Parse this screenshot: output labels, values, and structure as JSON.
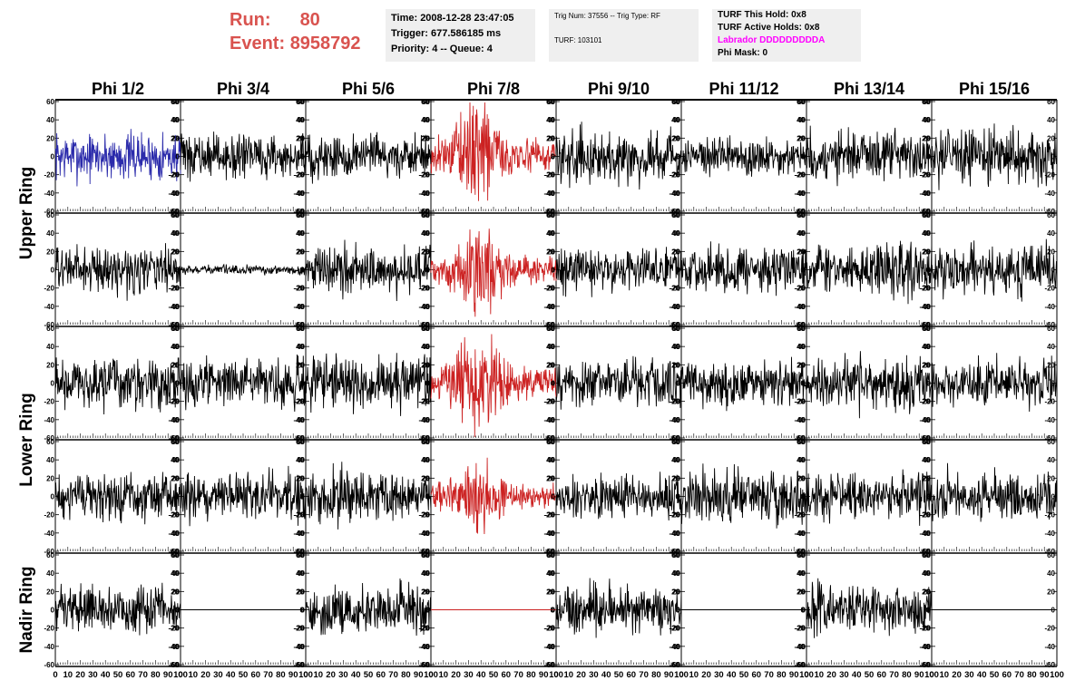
{
  "header": {
    "run_label": "Run:",
    "run_value": "80",
    "event_label": "Event:",
    "event_value": "8958792",
    "title_color": "#d9534f",
    "time": "Time: 2008-12-28 23:47:05",
    "trigger": "Trigger: 677.586185 ms",
    "priority": "Priority: 4 -- Queue: 4",
    "trig_num": "Trig Num: 37556 -- Trig Type: RF",
    "turf": "TURF: 103101",
    "turf_hold": "TURF This Hold: 0x8",
    "turf_active": "TURF Active Holds: 0x8",
    "labrador": "Labrador DDDDDDDDDA",
    "labrador_color": "#ff00ff",
    "phi_mask": "Phi Mask: 0"
  },
  "chart_data": {
    "type": "line",
    "columns": [
      "Phi 1/2",
      "Phi 3/4",
      "Phi 5/6",
      "Phi 7/8",
      "Phi 9/10",
      "Phi 11/12",
      "Phi 13/14",
      "Phi 15/16"
    ],
    "rows": [
      "Upper Ring",
      "",
      "Lower Ring",
      "",
      "Nadir Ring"
    ],
    "row_label_spans": [
      {
        "label": "Upper Ring",
        "rows": [
          0,
          1
        ]
      },
      {
        "label": "Lower Ring",
        "rows": [
          2,
          3
        ]
      },
      {
        "label": "Nadir Ring",
        "rows": [
          4
        ]
      }
    ],
    "xlim": [
      0,
      100
    ],
    "ylim": [
      -60,
      60
    ],
    "x_ticks": [
      0,
      10,
      20,
      30,
      40,
      50,
      60,
      70,
      80,
      90,
      100
    ],
    "x_tick_labels": [
      "0",
      "10",
      "20",
      "30",
      "40",
      "50",
      "60",
      "70",
      "80",
      "90",
      "100"
    ],
    "y_ticks": [
      -60,
      -40,
      -20,
      0,
      20,
      40,
      60
    ],
    "y_tick_labels": [
      "-60",
      "-40",
      "-20",
      "0",
      "20",
      "40",
      "60"
    ],
    "colors": {
      "normal": "#000000",
      "highlight": "#cc2222",
      "blue": "#2b2bab"
    },
    "panels": [
      [
        {
          "color": "blue",
          "amp": 16,
          "burst": false
        },
        {
          "color": "normal",
          "amp": 14,
          "burst": false
        },
        {
          "color": "normal",
          "amp": 15,
          "burst": false
        },
        {
          "color": "highlight",
          "amp": 30,
          "burst": true
        },
        {
          "color": "normal",
          "amp": 17,
          "burst": false
        },
        {
          "color": "normal",
          "amp": 13,
          "burst": false
        },
        {
          "color": "normal",
          "amp": 17,
          "burst": false
        },
        {
          "color": "normal",
          "amp": 18,
          "burst": false
        }
      ],
      [
        {
          "color": "normal",
          "amp": 15,
          "burst": false
        },
        {
          "color": "normal",
          "amp": 3,
          "burst": false
        },
        {
          "color": "normal",
          "amp": 16,
          "burst": false
        },
        {
          "color": "highlight",
          "amp": 25,
          "burst": true
        },
        {
          "color": "normal",
          "amp": 14,
          "burst": false
        },
        {
          "color": "normal",
          "amp": 15,
          "burst": false
        },
        {
          "color": "normal",
          "amp": 17,
          "burst": false
        },
        {
          "color": "normal",
          "amp": 16,
          "burst": false
        }
      ],
      [
        {
          "color": "normal",
          "amp": 17,
          "burst": false
        },
        {
          "color": "normal",
          "amp": 15,
          "burst": false
        },
        {
          "color": "normal",
          "amp": 17,
          "burst": false
        },
        {
          "color": "highlight",
          "amp": 30,
          "burst": true
        },
        {
          "color": "normal",
          "amp": 16,
          "burst": false
        },
        {
          "color": "normal",
          "amp": 15,
          "burst": false
        },
        {
          "color": "normal",
          "amp": 17,
          "burst": false
        },
        {
          "color": "normal",
          "amp": 15,
          "burst": false
        }
      ],
      [
        {
          "color": "normal",
          "amp": 15,
          "burst": false
        },
        {
          "color": "normal",
          "amp": 16,
          "burst": false
        },
        {
          "color": "normal",
          "amp": 17,
          "burst": false
        },
        {
          "color": "highlight",
          "amp": 22,
          "burst": true
        },
        {
          "color": "normal",
          "amp": 14,
          "burst": false
        },
        {
          "color": "normal",
          "amp": 18,
          "burst": false
        },
        {
          "color": "normal",
          "amp": 15,
          "burst": false
        },
        {
          "color": "normal",
          "amp": 16,
          "burst": false
        }
      ],
      [
        {
          "color": "normal",
          "amp": 15,
          "burst": false
        },
        {
          "color": "normal",
          "amp": 0,
          "burst": false
        },
        {
          "color": "normal",
          "amp": 16,
          "burst": false
        },
        {
          "color": "highlight",
          "amp": 0,
          "burst": false
        },
        {
          "color": "normal",
          "amp": 16,
          "burst": false
        },
        {
          "color": "normal",
          "amp": 0,
          "burst": false
        },
        {
          "color": "normal",
          "amp": 16,
          "burst": false
        },
        {
          "color": "normal",
          "amp": 0,
          "burst": false
        }
      ]
    ]
  }
}
